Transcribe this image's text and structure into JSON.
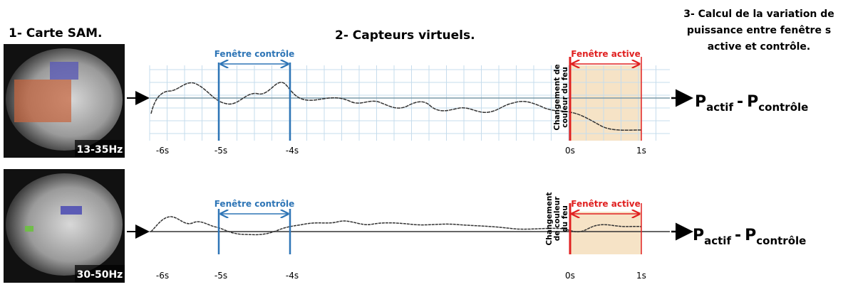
{
  "step1": {
    "title": "1- Carte SAM."
  },
  "step2": {
    "title": "2- Capteurs virtuels."
  },
  "step3": {
    "title_lines": [
      "3- Calcul de la variation de",
      "puissance entre fenêtre s",
      "active et contrôle."
    ]
  },
  "panels": [
    {
      "band": "13-35Hz",
      "control_window": "Fenêtre contrôle",
      "active_window": "Fenêtre active",
      "event_label": [
        "Changement de",
        "couleur du feu"
      ],
      "ticks": [
        "-6s",
        "-5s",
        "-4s",
        "0s",
        "1s"
      ],
      "formula": {
        "p1": "P",
        "sub1": "actif",
        "minus": "-",
        "p2": "P",
        "sub2": "contrôle"
      }
    },
    {
      "band": "30-50Hz",
      "control_window": "Fenêtre contrôle",
      "active_window": "Fenêtre active",
      "event_label": [
        "Changement",
        "de couleur",
        "du feu"
      ],
      "ticks": [
        "-6s",
        "-5s",
        "-4s",
        "0s",
        "1s"
      ],
      "formula": {
        "p1": "P",
        "sub1": "actif",
        "minus": "-",
        "p2": "P",
        "sub2": "contrôle"
      }
    }
  ]
}
